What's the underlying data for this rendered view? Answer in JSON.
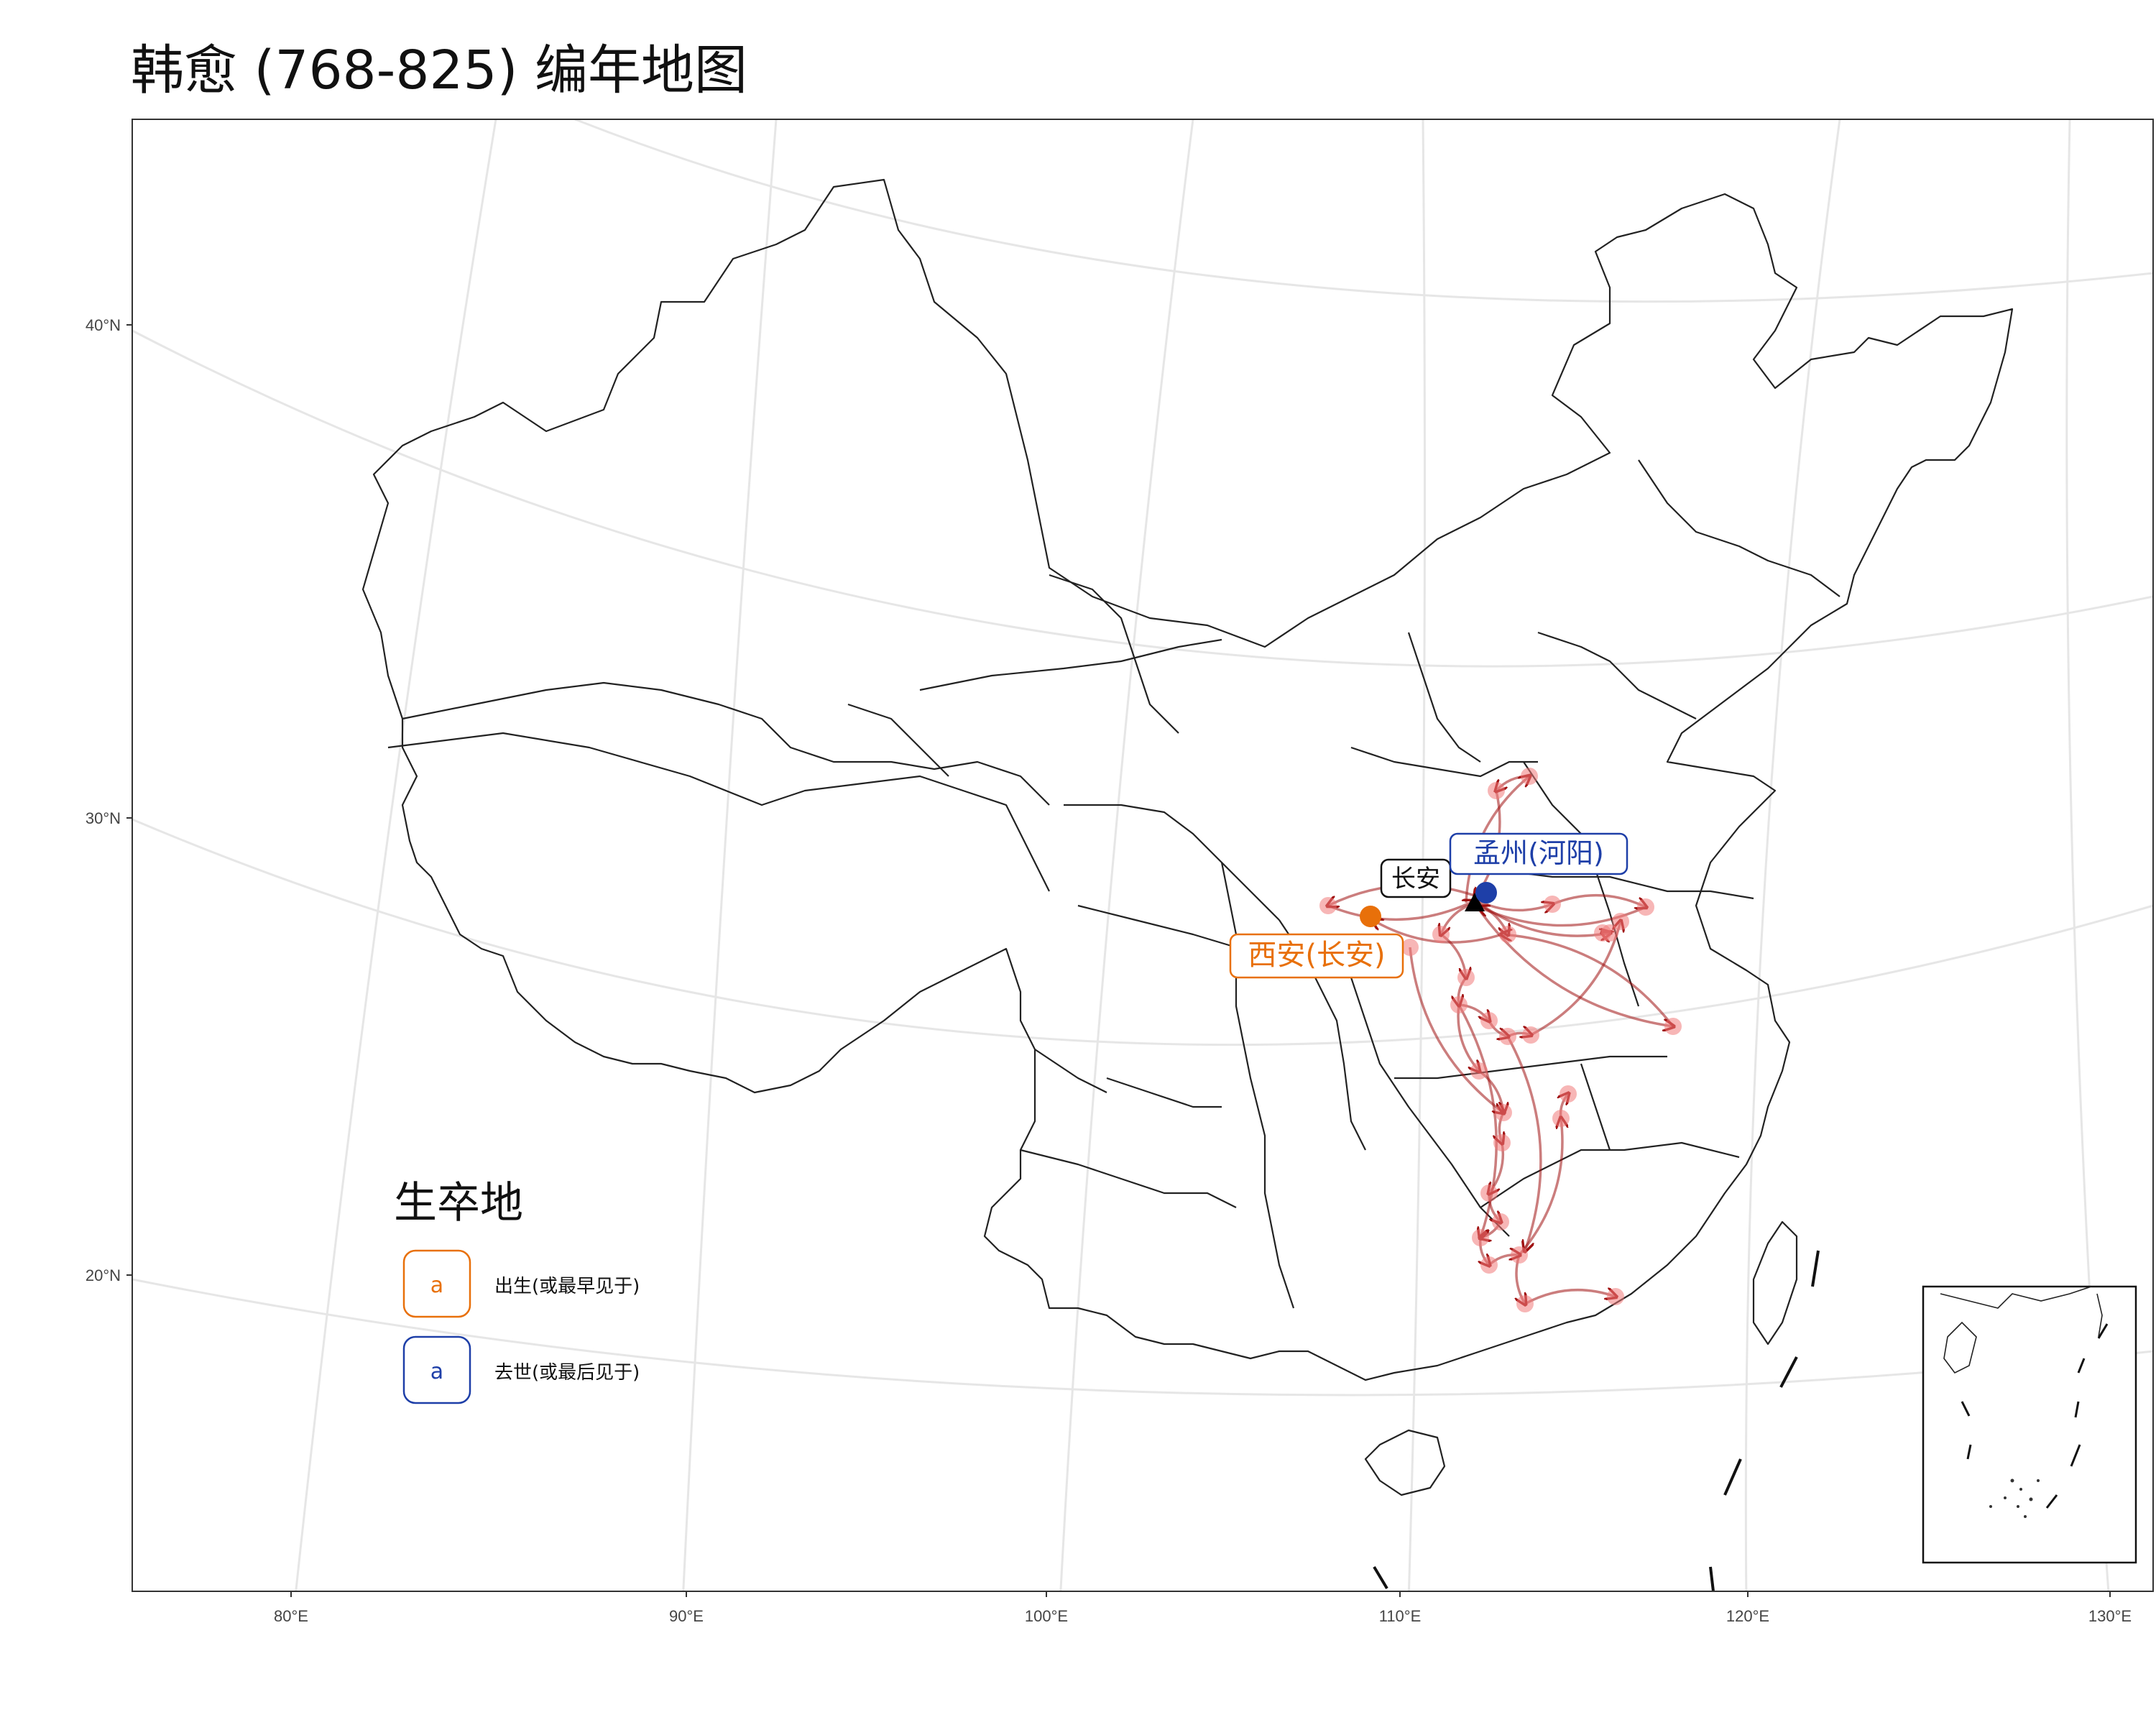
{
  "title": "韩愈 (768-825) 编年地图",
  "axes": {
    "x_ticks": [
      "80°E",
      "90°E",
      "100°E",
      "110°E",
      "120°E",
      "130°E"
    ],
    "y_ticks": [
      "40°N",
      "30°N",
      "20°N"
    ]
  },
  "places": {
    "birth": {
      "label": "西安(长安)",
      "color": "#E8700A"
    },
    "death": {
      "label": "孟州(河阳)",
      "color": "#1E3FA8"
    },
    "capital": {
      "label": "长安",
      "color": "#000000"
    }
  },
  "legend": {
    "title": "生卒地",
    "key_glyph": "a",
    "items": [
      {
        "label": "出生(或最早见于)",
        "color": "#E8700A"
      },
      {
        "label": "去世(或最后见于)",
        "color": "#1E3FA8"
      }
    ]
  },
  "colors": {
    "route": "#A01212",
    "stop": "#F07A7A",
    "border": "#222222",
    "grid": "#E6E6E6"
  }
}
